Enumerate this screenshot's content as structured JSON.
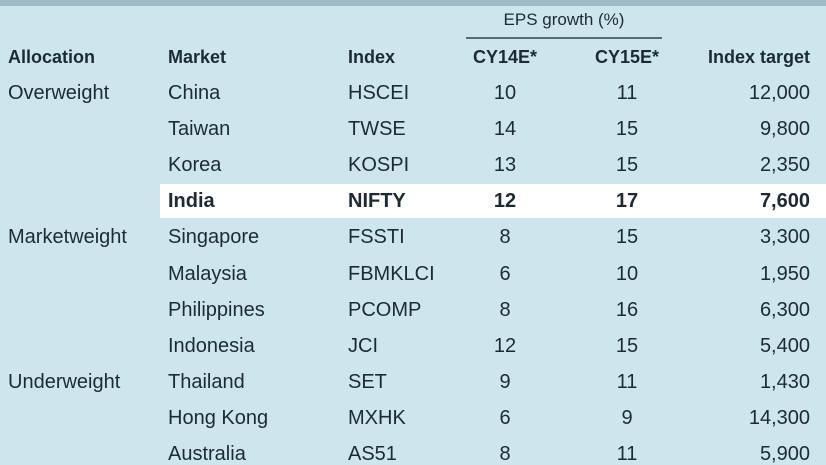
{
  "table": {
    "group_header": "EPS growth (%)",
    "columns": [
      "Allocation",
      "Market",
      "Index",
      "CY14E*",
      "CY15E*",
      "Index target"
    ],
    "groups": [
      {
        "allocation": "Overweight",
        "rows": [
          {
            "market": "China",
            "index": "HSCEI",
            "cy14": "10",
            "cy15": "11",
            "target": "12,000"
          },
          {
            "market": "Taiwan",
            "index": "TWSE",
            "cy14": "14",
            "cy15": "15",
            "target": "9,800"
          },
          {
            "market": "Korea",
            "index": "KOSPI",
            "cy14": "13",
            "cy15": "15",
            "target": "2,350"
          },
          {
            "market": "India",
            "index": "NIFTY",
            "cy14": "12",
            "cy15": "17",
            "target": "7,600",
            "highlight": true
          }
        ]
      },
      {
        "allocation": "Marketweight",
        "rows": [
          {
            "market": "Singapore",
            "index": "FSSTI",
            "cy14": "8",
            "cy15": "15",
            "target": "3,300"
          },
          {
            "market": "Malaysia",
            "index": "FBMKLCI",
            "cy14": "6",
            "cy15": "10",
            "target": "1,950"
          },
          {
            "market": "Philippines",
            "index": "PCOMP",
            "cy14": "8",
            "cy15": "16",
            "target": "6,300"
          },
          {
            "market": "Indonesia",
            "index": "JCI",
            "cy14": "12",
            "cy15": "15",
            "target": "5,400"
          }
        ]
      },
      {
        "allocation": "Underweight",
        "rows": [
          {
            "market": "Thailand",
            "index": "SET",
            "cy14": "9",
            "cy15": "11",
            "target": "1,430"
          },
          {
            "market": "Hong Kong",
            "index": "MXHK",
            "cy14": "6",
            "cy15": "9",
            "target": "14,300"
          },
          {
            "market": "Australia",
            "index": "AS51",
            "cy14": "8",
            "cy15": "11",
            "target": "5,900"
          }
        ]
      }
    ]
  }
}
